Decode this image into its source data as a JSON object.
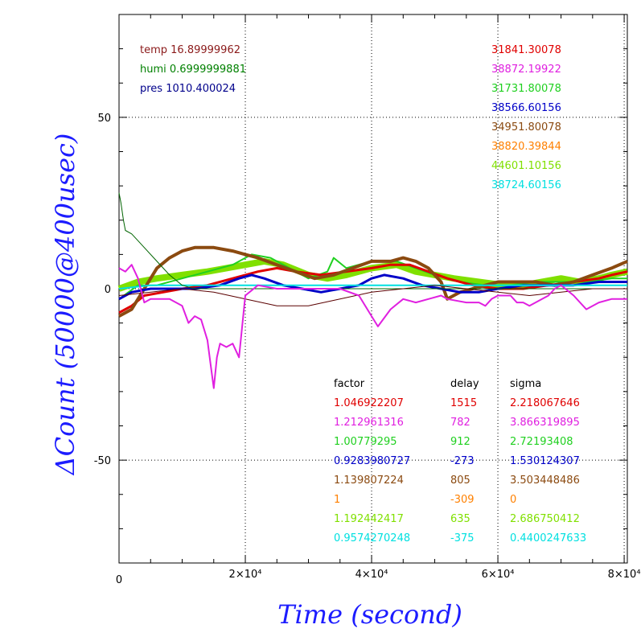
{
  "chart_data": {
    "type": "line",
    "xlabel": "Time (second)",
    "ylabel": "ΔCount (50000@400usec)",
    "xlim": [
      0,
      80500
    ],
    "ylim": [
      -80,
      80
    ],
    "grid": true,
    "x_tick_labels": [
      {
        "x": 0,
        "label": "0"
      },
      {
        "x": 20000,
        "label": "2×10⁴"
      },
      {
        "x": 40000,
        "label": "4×10⁴"
      },
      {
        "x": 60000,
        "label": "6×10⁴"
      },
      {
        "x": 80000,
        "label": "8×10⁴"
      }
    ],
    "y_tick_labels": [
      {
        "y": 50,
        "label": "50"
      },
      {
        "y": 0,
        "label": "0"
      },
      {
        "y": -50,
        "label": "-50"
      }
    ],
    "env": [
      {
        "text": "temp 16.89999962",
        "color": "#8b1a1a"
      },
      {
        "text": "humi 0.6999999881",
        "color": "#008000"
      },
      {
        "text": "pres 1010.400024",
        "color": "#00008b"
      }
    ],
    "means": [
      {
        "text": "31841.30078",
        "color": "#e00000"
      },
      {
        "text": "38872.19922",
        "color": "#e020e0"
      },
      {
        "text": "31731.80078",
        "color": "#20d020"
      },
      {
        "text": "38566.60156",
        "color": "#0000c8"
      },
      {
        "text": "34951.80078",
        "color": "#8b4a10"
      },
      {
        "text": "38820.39844",
        "color": "#ff8000"
      },
      {
        "text": "44601.10156",
        "color": "#80e000"
      },
      {
        "text": "38724.60156",
        "color": "#00e0e0"
      }
    ],
    "table_headers": [
      "factor",
      "delay",
      "sigma"
    ],
    "table_rows": [
      {
        "factor": "1.046922207",
        "delay": "1515",
        "sigma": "2.218067646",
        "color": "#e00000"
      },
      {
        "factor": "1.212961316",
        "delay": "782",
        "sigma": "3.866319895",
        "color": "#e020e0"
      },
      {
        "factor": "1.00779295",
        "delay": "912",
        "sigma": "2.72193408",
        "color": "#20d020"
      },
      {
        "factor": "0.9283980727",
        "delay": "-273",
        "sigma": "1.530124307",
        "color": "#0000c8"
      },
      {
        "factor": "1.139807224",
        "delay": "805",
        "sigma": "3.503448486",
        "color": "#8b4a10"
      },
      {
        "factor": "1",
        "delay": "-309",
        "sigma": "0",
        "color": "#ff8000"
      },
      {
        "factor": "1.192442417",
        "delay": "635",
        "sigma": "2.686750412",
        "color": "#80e000"
      },
      {
        "factor": "0.9574270248",
        "delay": "-375",
        "sigma": "0.4400247633",
        "color": "#00e0e0"
      }
    ],
    "series": [
      {
        "color": "#80e000",
        "width": 8,
        "x": [
          0,
          3000,
          6000,
          10000,
          14000,
          17000,
          20000,
          23000,
          26000,
          30000,
          33000,
          36000,
          40000,
          44000,
          47000,
          50000,
          53000,
          57000,
          61000,
          64000,
          67000,
          70000,
          73000,
          76000,
          78000,
          80500
        ],
        "y": [
          0,
          2,
          3,
          4,
          5,
          6,
          7,
          8,
          7,
          4,
          3,
          4,
          6,
          7,
          5,
          4,
          3,
          2,
          1,
          1,
          2,
          3,
          2,
          3,
          4,
          5
        ]
      },
      {
        "color": "#20d020",
        "width": 2,
        "x": [
          0,
          3000,
          6000,
          10000,
          14000,
          18000,
          21000,
          24000,
          27000,
          30000,
          33000,
          34000,
          36000,
          40000,
          44000,
          47000,
          50000,
          54000,
          58000,
          62000,
          66000,
          70000,
          74000,
          78000,
          80500
        ],
        "y": [
          -3,
          1,
          1,
          3,
          5,
          7,
          10,
          9,
          6,
          3,
          5,
          9,
          6,
          8,
          8,
          6,
          4,
          2,
          1,
          1,
          2,
          2,
          2,
          3,
          3
        ]
      },
      {
        "color": "#e00000",
        "width": 3,
        "x": [
          0,
          2000,
          4000,
          7000,
          10000,
          14000,
          18000,
          20000,
          22000,
          25000,
          28000,
          32000,
          36000,
          40000,
          43000,
          46000,
          49000,
          52000,
          56000,
          60000,
          64000,
          68000,
          72000,
          76000,
          78000,
          80500
        ],
        "y": [
          -7,
          -5,
          -2,
          -1,
          0,
          1,
          3,
          4,
          5,
          6,
          5,
          4,
          5,
          6,
          7,
          7,
          5,
          3,
          1,
          0,
          0,
          1,
          2,
          3,
          4,
          5
        ]
      },
      {
        "color": "#8b4a10",
        "width": 4,
        "x": [
          0,
          2000,
          4000,
          6000,
          8000,
          10000,
          12000,
          15000,
          18000,
          20000,
          22000,
          25000,
          28000,
          31000,
          34000,
          37000,
          40000,
          43000,
          45000,
          47000,
          49000,
          51000,
          52000,
          54000,
          56000,
          58000,
          60000,
          63000,
          66000,
          69000,
          72000,
          75000,
          78000,
          80500
        ],
        "y": [
          -8,
          -6,
          0,
          6,
          9,
          11,
          12,
          12,
          11,
          10,
          9,
          7,
          5,
          3,
          4,
          6,
          8,
          8,
          9,
          8,
          6,
          2,
          -3,
          -1,
          0,
          1,
          2,
          2,
          2,
          1,
          2,
          4,
          6,
          8
        ]
      },
      {
        "color": "#0000c8",
        "width": 3,
        "x": [
          0,
          2000,
          5000,
          8000,
          12000,
          16000,
          19000,
          21000,
          23000,
          26000,
          29000,
          32000,
          35000,
          38000,
          40000,
          42000,
          45000,
          48000,
          51000,
          54000,
          57000,
          60000,
          64000,
          68000,
          72000,
          76000,
          80500
        ],
        "y": [
          -3,
          -1,
          0,
          0,
          0,
          1,
          3,
          4,
          3,
          1,
          0,
          -1,
          0,
          1,
          3,
          4,
          3,
          1,
          0,
          -1,
          -1,
          0,
          1,
          1,
          1,
          2,
          2
        ]
      },
      {
        "color": "#00e0e0",
        "width": 2,
        "x": [
          0,
          5000,
          10000,
          15000,
          20000,
          25000,
          30000,
          35000,
          40000,
          45000,
          50000,
          55000,
          60000,
          65000,
          70000,
          75000,
          80500
        ],
        "y": [
          0,
          1,
          1,
          1,
          1,
          1,
          1,
          1,
          1,
          1,
          1,
          1,
          1,
          1,
          1,
          1,
          1
        ]
      },
      {
        "color": "#006400",
        "width": 1,
        "x": [
          0,
          300,
          700,
          1000,
          2000,
          3000,
          4000,
          6000,
          8000,
          10000,
          12000,
          16000,
          20000,
          25000,
          30000,
          35000,
          40000,
          45000,
          50000,
          55000,
          60000,
          65000,
          70000,
          75000,
          80500
        ],
        "y": [
          28,
          25,
          20,
          17,
          16,
          14,
          12,
          8,
          4,
          1,
          0,
          0,
          0,
          0,
          0,
          0,
          0,
          0,
          0,
          0,
          0,
          0,
          0,
          0,
          0
        ]
      },
      {
        "color": "#5a0000",
        "width": 1,
        "x": [
          0,
          5000,
          10000,
          15000,
          20000,
          25000,
          30000,
          35000,
          40000,
          45000,
          50000,
          55000,
          60000,
          65000,
          70000,
          75000,
          80500
        ],
        "y": [
          -2,
          -1,
          0,
          -1,
          -3,
          -5,
          -5,
          -3,
          -1,
          0,
          1,
          0,
          -1,
          -2,
          -1,
          0,
          0
        ]
      },
      {
        "color": "#e020e0",
        "width": 2,
        "x": [
          0,
          1000,
          2000,
          3000,
          4000,
          5000,
          6000,
          8000,
          10000,
          11000,
          12000,
          13000,
          14000,
          14500,
          15000,
          15500,
          16000,
          17000,
          18000,
          19000,
          20000,
          22000,
          25000,
          30000,
          35000,
          38000,
          40000,
          41000,
          43000,
          45000,
          47000,
          49000,
          51000,
          52000,
          55000,
          57000,
          58000,
          59000,
          60000,
          62000,
          63000,
          64000,
          65000,
          67000,
          68000,
          69000,
          70000,
          72000,
          74000,
          76000,
          78000,
          80500
        ],
        "y": [
          6,
          5,
          7,
          3,
          -4,
          -3,
          -3,
          -3,
          -5,
          -10,
          -8,
          -9,
          -15,
          -22,
          -29,
          -20,
          -16,
          -17,
          -16,
          -20,
          -2,
          1,
          0,
          0,
          0,
          -2,
          -8,
          -11,
          -6,
          -3,
          -4,
          -3,
          -2,
          -3,
          -4,
          -4,
          -5,
          -3,
          -2,
          -2,
          -4,
          -4,
          -5,
          -3,
          -2,
          0,
          1,
          -2,
          -6,
          -4,
          -3,
          -3
        ]
      }
    ]
  }
}
